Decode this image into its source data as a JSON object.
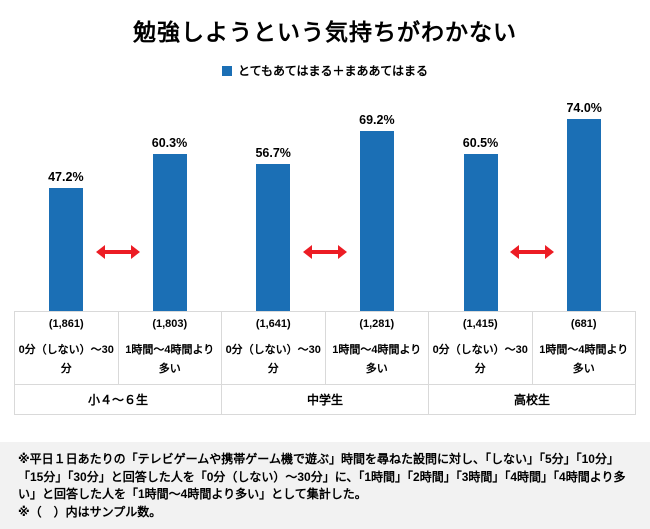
{
  "title": "勉強しようという気持ちがわかない",
  "legend": {
    "label": "とてもあてはまる＋まああてはまる"
  },
  "chart_data": {
    "type": "bar",
    "title": "勉強しようという気持ちがわかない",
    "series_label": "とてもあてはまる＋まああてはまる",
    "xlabel": "",
    "ylabel": "",
    "unit": "%",
    "ylim": [
      0,
      80
    ],
    "grid": false,
    "legend_position": "top-center",
    "bar_color": "#1b6fb5",
    "arrow_color": "#ec1c24",
    "bars": [
      {
        "group": "小４～６生",
        "category": "0分（しない）～30分",
        "sample": "(1,861)",
        "value": 47.2,
        "label": "47.2%"
      },
      {
        "group": "小４～６生",
        "category": "1時間～4時間より多い",
        "sample": "(1,803)",
        "value": 60.3,
        "label": "60.3%"
      },
      {
        "group": "中学生",
        "category": "0分（しない）～30分",
        "sample": "(1,641)",
        "value": 56.7,
        "label": "56.7%"
      },
      {
        "group": "中学生",
        "category": "1時間～4時間より多い",
        "sample": "(1,281)",
        "value": 69.2,
        "label": "69.2%"
      },
      {
        "group": "高校生",
        "category": "0分（しない）～30分",
        "sample": "(1,415)",
        "value": 60.5,
        "label": "60.5%"
      },
      {
        "group": "高校生",
        "category": "1時間～4時間より多い",
        "sample": "(681)",
        "value": 74.0,
        "label": "74.0%"
      }
    ],
    "group_labels": [
      "小４～６生",
      "中学生",
      "高校生"
    ]
  },
  "footnotes": [
    "※平日１日あたりの「テレビゲームや携帯ゲーム機で遊ぶ」時間を尋ねた設問に対し、「しない」「5分」「10分」「15分」「30分」と回答した人を「0分（しない）～30分」に、「1時間」「2時間」「3時間」「4時間」「4時間より多い」と回答した人を「1時間～4時間より多い」として集計した。",
    "※（　）内はサンプル数。"
  ]
}
